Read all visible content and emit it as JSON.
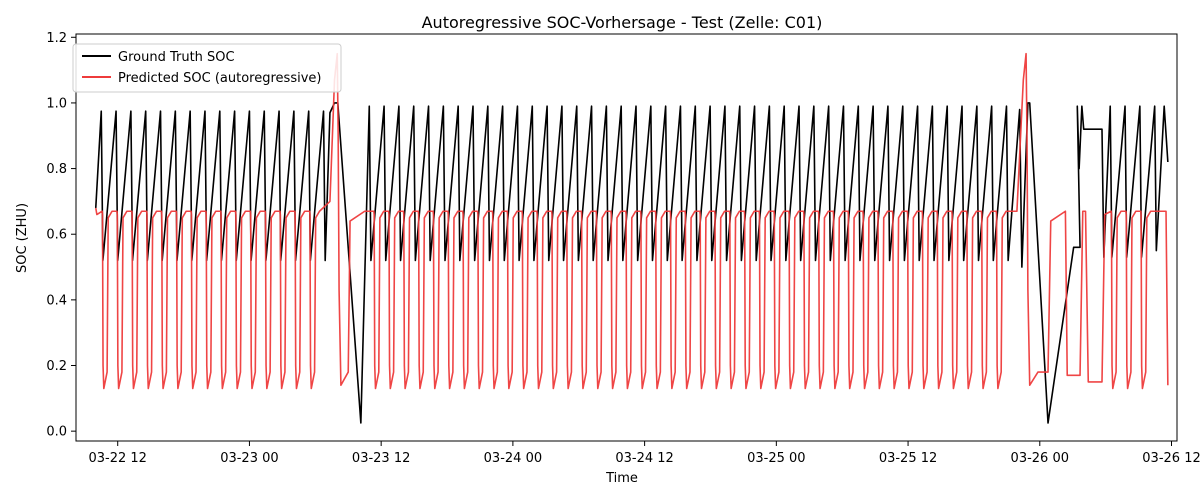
{
  "chart_data": {
    "type": "line",
    "title": "Autoregressive SOC-Vorhersage - Test (Zelle: C01)",
    "xlabel": "Time",
    "ylabel": "SOC (ZHU)",
    "ylim": [
      -0.03,
      1.21
    ],
    "xlim": [
      "2026-03-22 08:12",
      "2026-03-26 12:30"
    ],
    "x_ticks": [
      "03-22 12",
      "03-23 00",
      "03-23 12",
      "03-24 00",
      "03-24 12",
      "03-25 00",
      "03-25 12",
      "03-26 00",
      "03-26 12"
    ],
    "y_ticks": [
      "0.0",
      "0.2",
      "0.4",
      "0.6",
      "0.8",
      "1.0",
      "1.2"
    ],
    "grid": false,
    "legend_position": "top-left",
    "cycle_hours": 1.35,
    "series": [
      {
        "name": "Ground Truth SOC",
        "color": "#000000",
        "segments": [
          {
            "from": "2026-03-22 10:00",
            "to": "2026-03-23 07:45",
            "start": 0.68,
            "peak": 0.975,
            "trough": 0.52,
            "period_h": 1.35
          },
          {
            "from": "2026-03-23 07:45",
            "to": "2026-03-23 10:10",
            "points": [
              [
                0.0,
                1.0
              ],
              [
                0.3,
                1.0
              ],
              [
                2.4,
                0.025
              ]
            ]
          },
          {
            "from": "2026-03-23 10:10",
            "to": "2026-03-25 22:50",
            "peak": 0.99,
            "trough": 0.52,
            "period_h": 1.35
          },
          {
            "from": "2026-03-25 22:50",
            "to": "2026-03-26 11:40",
            "peak": 1.0,
            "trough": 0.025,
            "plateaus": [
              0.56,
              0.92
            ],
            "end": 0.82
          }
        ]
      },
      {
        "name": "Predicted SOC (autoregressive)",
        "color": "#ee3b3b",
        "segments": [
          {
            "from": "2026-03-22 10:00",
            "to": "2026-03-26 11:40",
            "high": 0.67,
            "low": 0.13,
            "period_h": 1.35,
            "spikes": [
              1.15,
              1.15
            ],
            "dips": [
              0.43,
              0.18
            ]
          }
        ]
      }
    ]
  }
}
